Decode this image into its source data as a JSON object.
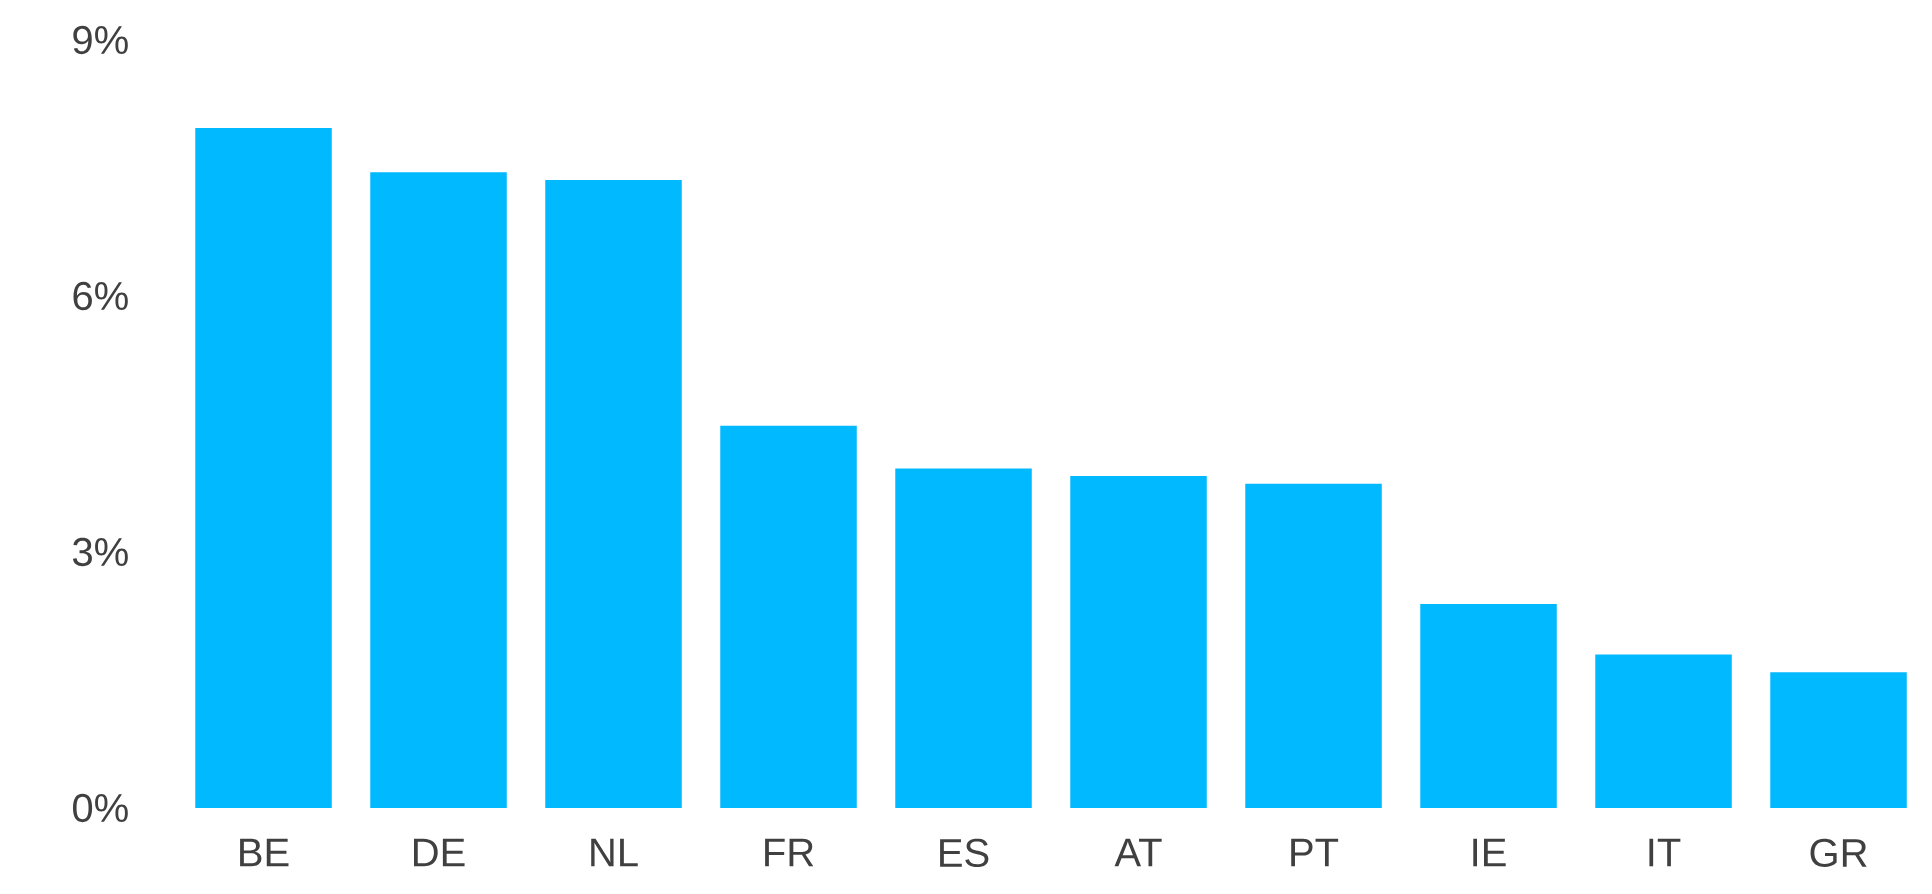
{
  "chart_data": {
    "type": "bar",
    "categories": [
      "BE",
      "DE",
      "NL",
      "FR",
      "ES",
      "AT",
      "PT",
      "IE",
      "IT",
      "GR"
    ],
    "values": [
      7.97,
      7.45,
      7.36,
      4.48,
      3.98,
      3.89,
      3.8,
      2.39,
      1.8,
      1.59
    ],
    "color": "#00b9ff",
    "ylim": [
      0,
      9
    ],
    "yticks": [
      {
        "value": 0,
        "label": "0%"
      },
      {
        "value": 3,
        "label": "3%"
      },
      {
        "value": 6,
        "label": "6%"
      },
      {
        "value": 9,
        "label": "9%"
      }
    ]
  }
}
